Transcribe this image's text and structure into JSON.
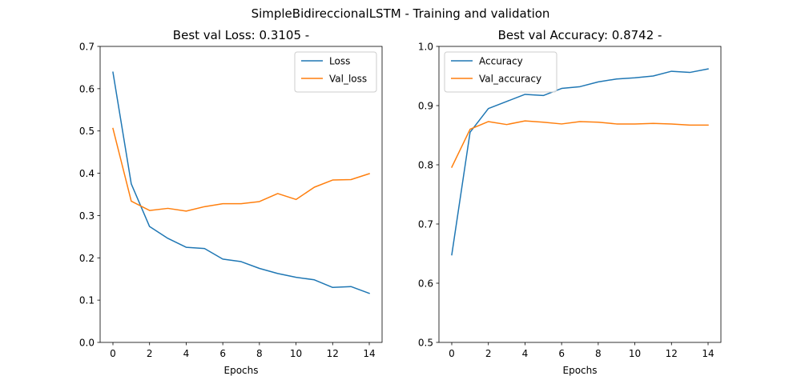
{
  "figure": {
    "suptitle": "SimpleBidireccionalLSTM - Training and validation"
  },
  "chart_data": [
    {
      "type": "line",
      "title": "Best val Loss: 0.3105 -",
      "xlabel": "Epochs",
      "ylabel": "",
      "xlim": [
        -0.7,
        14.7
      ],
      "ylim": [
        0.0,
        0.7
      ],
      "xticks": [
        0,
        2,
        4,
        6,
        8,
        10,
        12,
        14
      ],
      "xtick_labels": [
        "0",
        "2",
        "4",
        "6",
        "8",
        "10",
        "12",
        "14"
      ],
      "yticks": [
        0.0,
        0.1,
        0.2,
        0.3,
        0.4,
        0.5,
        0.6,
        0.7
      ],
      "ytick_labels": [
        "0.0",
        "0.1",
        "0.2",
        "0.3",
        "0.4",
        "0.5",
        "0.6",
        "0.7"
      ],
      "legend_position": "upper right",
      "grid": false,
      "x": [
        0,
        1,
        2,
        3,
        4,
        5,
        6,
        7,
        8,
        9,
        10,
        11,
        12,
        13,
        14
      ],
      "series": [
        {
          "name": "Loss",
          "color": "#1f77b4",
          "values": [
            0.639,
            0.375,
            0.274,
            0.246,
            0.225,
            0.222,
            0.197,
            0.191,
            0.175,
            0.163,
            0.154,
            0.148,
            0.13,
            0.132,
            0.116
          ]
        },
        {
          "name": "Val_loss",
          "color": "#ff7f0e",
          "values": [
            0.506,
            0.334,
            0.312,
            0.317,
            0.3105,
            0.321,
            0.328,
            0.328,
            0.333,
            0.352,
            0.338,
            0.367,
            0.384,
            0.385,
            0.399
          ]
        }
      ]
    },
    {
      "type": "line",
      "title": "Best val Accuracy: 0.8742 -",
      "xlabel": "Epochs",
      "ylabel": "",
      "xlim": [
        -0.7,
        14.7
      ],
      "ylim": [
        0.5,
        1.0
      ],
      "xticks": [
        0,
        2,
        4,
        6,
        8,
        10,
        12,
        14
      ],
      "xtick_labels": [
        "0",
        "2",
        "4",
        "6",
        "8",
        "10",
        "12",
        "14"
      ],
      "yticks": [
        0.5,
        0.6,
        0.7,
        0.8,
        0.9,
        1.0
      ],
      "ytick_labels": [
        "0.5",
        "0.6",
        "0.7",
        "0.8",
        "0.9",
        "1.0"
      ],
      "legend_position": "upper left",
      "grid": false,
      "x": [
        0,
        1,
        2,
        3,
        4,
        5,
        6,
        7,
        8,
        9,
        10,
        11,
        12,
        13,
        14
      ],
      "series": [
        {
          "name": "Accuracy",
          "color": "#1f77b4",
          "values": [
            0.648,
            0.855,
            0.895,
            0.907,
            0.919,
            0.917,
            0.929,
            0.932,
            0.94,
            0.945,
            0.947,
            0.95,
            0.958,
            0.956,
            0.962
          ]
        },
        {
          "name": "Val_accuracy",
          "color": "#ff7f0e",
          "values": [
            0.796,
            0.86,
            0.873,
            0.868,
            0.8742,
            0.872,
            0.869,
            0.873,
            0.872,
            0.869,
            0.869,
            0.87,
            0.869,
            0.867,
            0.867
          ]
        }
      ]
    }
  ]
}
